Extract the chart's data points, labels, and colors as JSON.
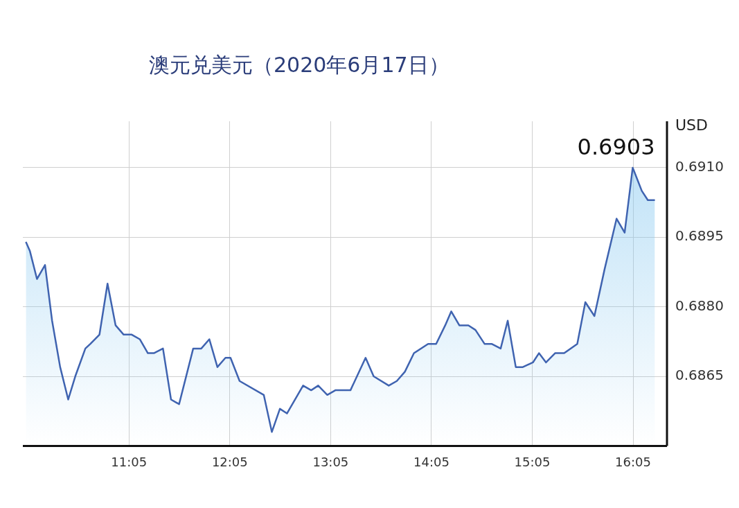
{
  "chart_data": {
    "type": "area",
    "title": "澳元兑美元（2020年6月17日）",
    "ylabel": "USD",
    "xlim": [
      10.03,
      16.42
    ],
    "xticks": [
      {
        "value": 11.0833,
        "label": "11:05"
      },
      {
        "value": 12.0833,
        "label": "12:05"
      },
      {
        "value": 13.0833,
        "label": "13:05"
      },
      {
        "value": 14.0833,
        "label": "14:05"
      },
      {
        "value": 15.0833,
        "label": "15:05"
      },
      {
        "value": 16.0833,
        "label": "16:05"
      }
    ],
    "ylim": [
      0.685,
      0.692
    ],
    "yticks": [
      0.6865,
      {
        "value": 0.688,
        "label": "0.6880"
      },
      0.6895,
      {
        "value": 0.691,
        "label": "0.6910"
      }
    ],
    "grid": true,
    "legend": false,
    "marker": "none",
    "line_style": "solid",
    "annotations": [
      {
        "text": "0.6903",
        "x": 16.3,
        "y": 0.6903
      }
    ],
    "series": [
      {
        "color": "#3f63b0",
        "x": [
          10.06,
          10.1,
          10.17,
          10.25,
          10.32,
          10.4,
          10.48,
          10.55,
          10.65,
          10.7,
          10.79,
          10.87,
          10.95,
          11.03,
          11.11,
          11.19,
          11.27,
          11.33,
          11.42,
          11.5,
          11.58,
          11.72,
          11.8,
          11.88,
          11.96,
          12.04,
          12.09,
          12.18,
          12.42,
          12.5,
          12.58,
          12.65,
          12.81,
          12.89,
          12.96,
          13.05,
          13.13,
          13.28,
          13.43,
          13.51,
          13.66,
          13.74,
          13.82,
          13.91,
          14.05,
          14.13,
          14.22,
          14.28,
          14.36,
          14.45,
          14.52,
          14.61,
          14.68,
          14.77,
          14.84,
          14.92,
          14.99,
          15.09,
          15.15,
          15.22,
          15.31,
          15.4,
          15.53,
          15.61,
          15.7,
          15.8,
          15.92,
          16.0,
          16.08,
          16.17,
          16.23,
          16.3
        ],
        "values": [
          0.6894,
          0.6892,
          0.6886,
          0.6889,
          0.6877,
          0.6867,
          0.686,
          0.6865,
          0.6871,
          0.6872,
          0.6874,
          0.6885,
          0.6876,
          0.6874,
          0.6874,
          0.6873,
          0.687,
          0.687,
          0.6871,
          0.686,
          0.6859,
          0.6871,
          0.6871,
          0.6873,
          0.6867,
          0.6869,
          0.6869,
          0.6864,
          0.6861,
          0.6853,
          0.6858,
          0.6857,
          0.6863,
          0.6862,
          0.6863,
          0.6861,
          0.6862,
          0.6862,
          0.6869,
          0.6865,
          0.6863,
          0.6864,
          0.6866,
          0.687,
          0.6872,
          0.6872,
          0.6876,
          0.6879,
          0.6876,
          0.6876,
          0.6875,
          0.6872,
          0.6872,
          0.6871,
          0.6877,
          0.6867,
          0.6867,
          0.6868,
          0.687,
          0.6868,
          0.687,
          0.687,
          0.6872,
          0.6881,
          0.6878,
          0.6888,
          0.6899,
          0.6896,
          0.691,
          0.6905,
          0.6903,
          0.6903
        ]
      }
    ]
  }
}
